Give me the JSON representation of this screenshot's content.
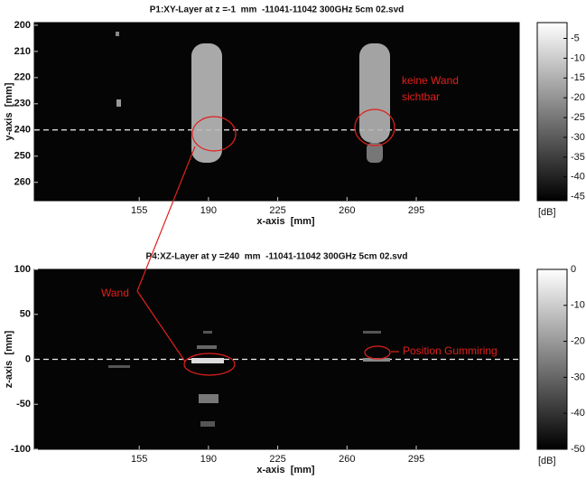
{
  "chart_data": [
    {
      "type": "heatmap",
      "title": "P1:XY-Layer at z =-1  mm  -11041-11042 300GHz 5cm 02.svd",
      "xlabel": "x-axis  [mm]",
      "ylabel": "y-axis  [mm]",
      "xlim": [
        102,
        347
      ],
      "xticks": [
        155,
        190,
        225,
        260,
        295
      ],
      "ylim": [
        267,
        199
      ],
      "yticks": [
        200,
        210,
        220,
        230,
        240,
        250,
        260
      ],
      "hline": 240,
      "clim": [
        -46,
        -1
      ],
      "cticks": [
        -5,
        -10,
        -15,
        -20,
        -25,
        -30,
        -35,
        -40,
        -45
      ],
      "clabel": "[dB]",
      "annotations": [
        "keine Wand",
        "sichtbar"
      ]
    },
    {
      "type": "heatmap",
      "title": "P4:XZ-Layer at y =240  mm  -11041-11042 300GHz 5cm 02.svd",
      "xlabel": "x-axis  [mm]",
      "ylabel": "z-axis  [mm]",
      "xlim": [
        102,
        347
      ],
      "xticks": [
        155,
        190,
        225,
        260,
        295
      ],
      "ylim": [
        -100,
        100
      ],
      "yticks": [
        100,
        50,
        0,
        -50,
        -100
      ],
      "hline": 0,
      "clim": [
        -50,
        0
      ],
      "cticks": [
        0,
        -10,
        -20,
        -30,
        -40,
        -50
      ],
      "clabel": "[dB]",
      "annotations": [
        "Wand",
        "Position Gummiring"
      ]
    }
  ]
}
